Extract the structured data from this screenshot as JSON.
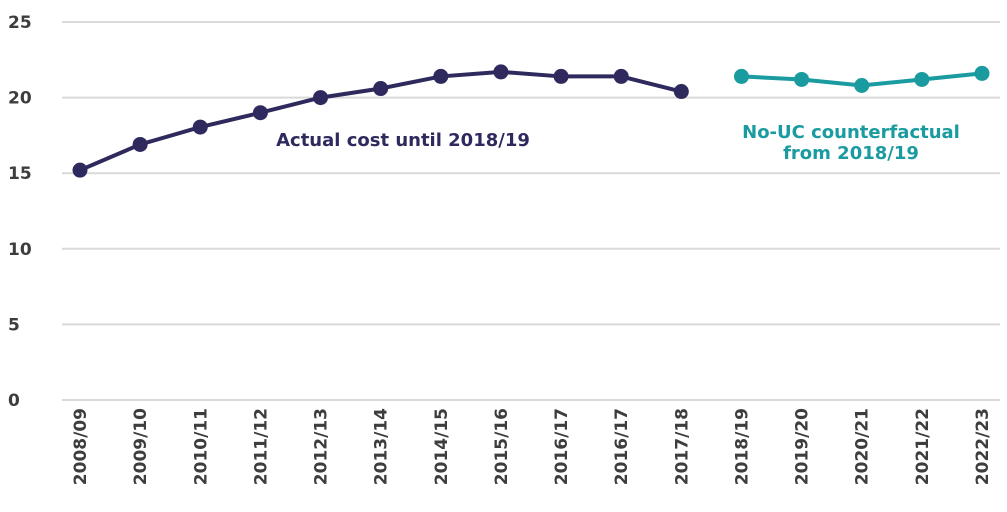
{
  "chart_data": {
    "type": "line",
    "categories": [
      "2008/09",
      "2009/10",
      "2010/11",
      "2011/12",
      "2012/13",
      "2013/14",
      "2014/15",
      "2015/16",
      "2016/17",
      "2016/17",
      "2017/18",
      "2018/19",
      "2019/20",
      "2020/21",
      "2021/22",
      "2022/23"
    ],
    "series": [
      {
        "label_lines": [
          "Actual cost until 2018/19"
        ],
        "color": "#2e2a5e",
        "values": [
          15.2,
          16.9,
          18.05,
          19.0,
          20.0,
          20.6,
          21.4,
          21.7,
          21.4,
          21.4,
          20.4,
          null,
          null,
          null,
          null,
          null
        ]
      },
      {
        "label_lines": [
          "No-UC counterfactual",
          "from 2018/19"
        ],
        "color": "#1a9ba0",
        "values": [
          null,
          null,
          null,
          null,
          null,
          null,
          null,
          null,
          null,
          null,
          null,
          21.4,
          21.2,
          20.8,
          21.2,
          21.6
        ]
      }
    ],
    "ylim": [
      0,
      25
    ],
    "yticks": [
      0,
      5,
      10,
      15,
      20,
      25
    ],
    "grid": true
  }
}
